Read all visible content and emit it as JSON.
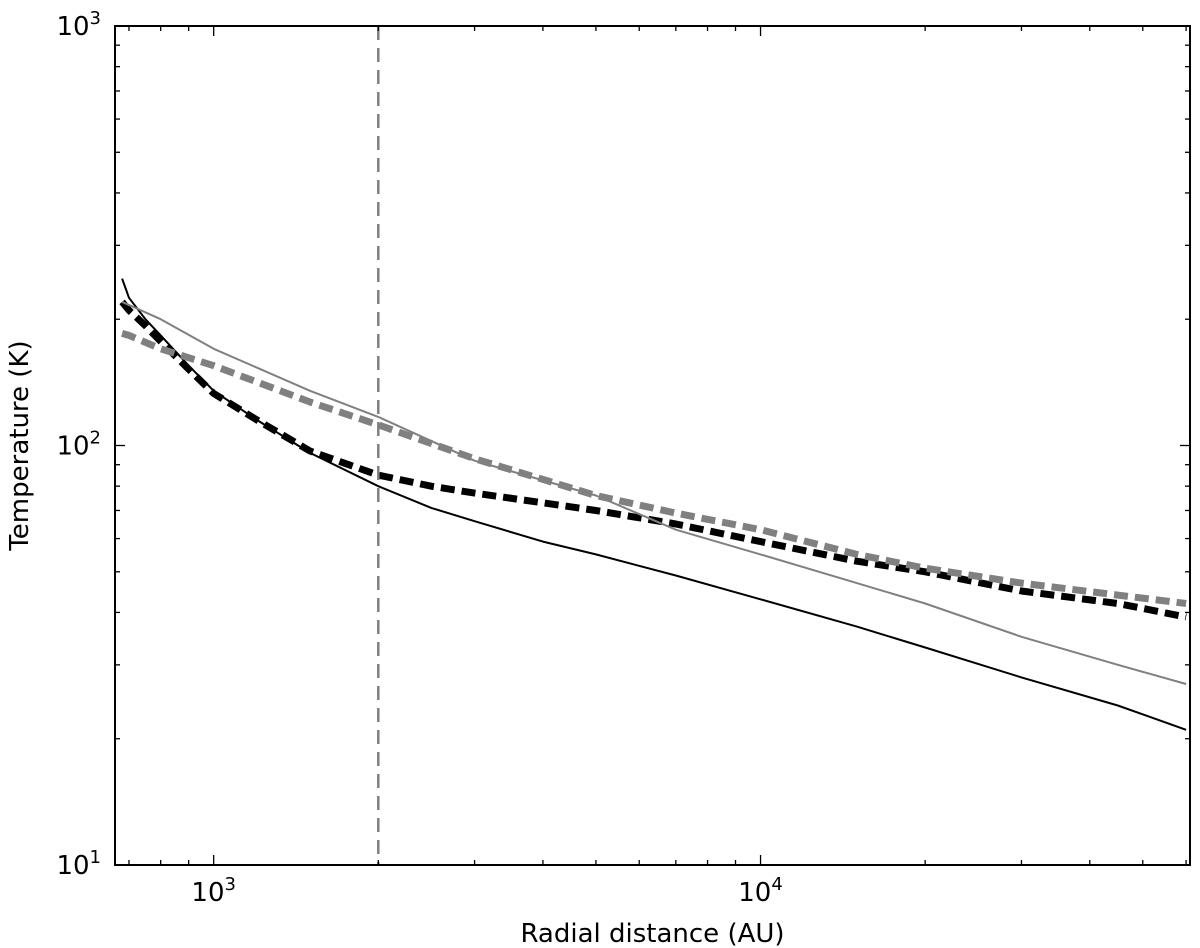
{
  "chart_data": {
    "type": "line",
    "xscale": "log",
    "yscale": "log",
    "xlim": [
      660,
      61000
    ],
    "ylim": [
      10,
      1000
    ],
    "xlabel": "Radial distance (AU)",
    "ylabel": "Temperature (K)",
    "x_ticks": [
      {
        "value": 1000,
        "base": "10",
        "exp": "3"
      },
      {
        "value": 10000,
        "base": "10",
        "exp": "4"
      }
    ],
    "y_ticks": [
      {
        "value": 10,
        "base": "10",
        "exp": "1"
      },
      {
        "value": 100,
        "base": "10",
        "exp": "2"
      },
      {
        "value": 1000,
        "base": "10",
        "exp": "3"
      }
    ],
    "grid": false,
    "reference_lines": [
      {
        "orientation": "vertical",
        "x": 2000,
        "color": "#808080",
        "style": "dashed"
      }
    ],
    "series": [
      {
        "color": "#000000",
        "style": "solid",
        "width": 2,
        "x": [
          680,
          700,
          750,
          800,
          900,
          1000,
          1200,
          1500,
          2000,
          2500,
          3000,
          4000,
          5000,
          7000,
          10000,
          15000,
          20000,
          30000,
          45000,
          60000
        ],
        "y": [
          250,
          225,
          200,
          183,
          155,
          135,
          115,
          96,
          80,
          71,
          66,
          59,
          55,
          49,
          43,
          37,
          33,
          28,
          24,
          21
        ]
      },
      {
        "color": "#000000",
        "style": "dashed",
        "width": 7,
        "x": [
          680,
          700,
          750,
          800,
          900,
          1000,
          1200,
          1500,
          2000,
          2500,
          3000,
          4000,
          5000,
          7000,
          10000,
          15000,
          20000,
          30000,
          45000,
          60000
        ],
        "y": [
          220,
          210,
          193,
          177,
          152,
          133,
          115,
          97,
          85,
          80,
          77,
          73,
          70,
          65,
          59,
          53,
          50,
          45,
          42,
          39
        ]
      },
      {
        "color": "#808080",
        "style": "solid",
        "width": 2,
        "x": [
          680,
          800,
          1000,
          1500,
          2000,
          3000,
          5000,
          7000,
          10000,
          15000,
          20000,
          30000,
          45000,
          60000
        ],
        "y": [
          220,
          200,
          170,
          135,
          117,
          92,
          76,
          63,
          55,
          47,
          42,
          35,
          30,
          27
        ]
      },
      {
        "color": "#808080",
        "style": "dashed",
        "width": 7,
        "x": [
          680,
          700,
          800,
          1000,
          1500,
          2000,
          3000,
          5000,
          7000,
          10000,
          15000,
          20000,
          30000,
          45000,
          60000
        ],
        "y": [
          185,
          183,
          170,
          155,
          127,
          112,
          93,
          76,
          69,
          63,
          55,
          51,
          47,
          44,
          42
        ]
      }
    ]
  }
}
